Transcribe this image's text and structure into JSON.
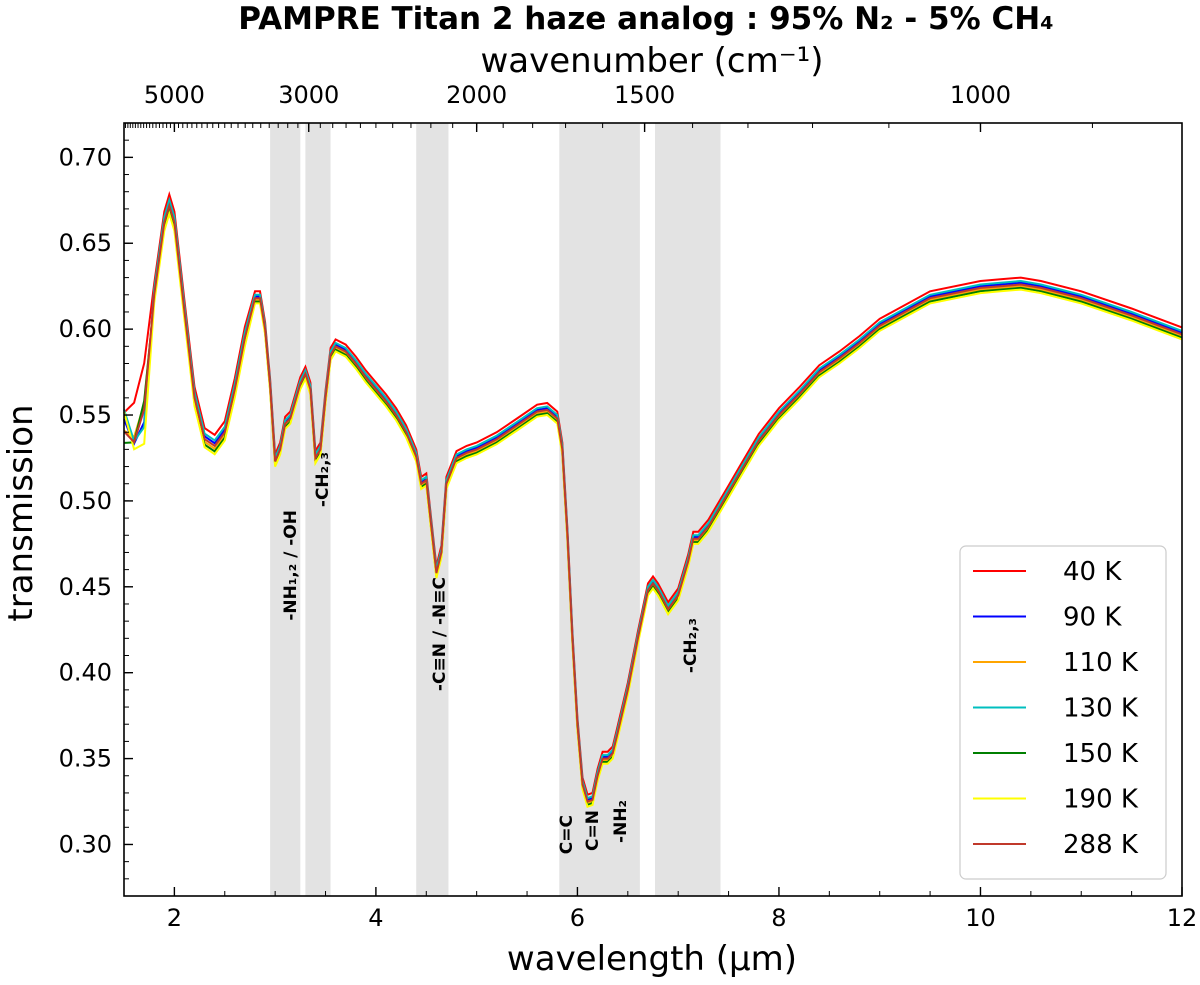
{
  "chart_data": {
    "type": "line",
    "title": "PAMPRE Titan 2 haze analog : 95% N₂ - 5% CH₄",
    "xlabel": "wavelength (μm)",
    "ylabel": "transmission",
    "x2label": "wavenumber (cm⁻¹)",
    "xlim": [
      1.5,
      12
    ],
    "ylim": [
      0.27,
      0.72
    ],
    "xticks": [
      2,
      4,
      6,
      8,
      10,
      12
    ],
    "yticks": [
      0.3,
      0.35,
      0.4,
      0.45,
      0.5,
      0.55,
      0.6,
      0.65,
      0.7
    ],
    "x2ticks": [
      5000,
      3000,
      2000,
      1500,
      1000
    ],
    "legend_position": "lower-right",
    "grid": false,
    "bands": [
      {
        "xmin": 2.95,
        "xmax": 3.25,
        "label": "-NH₁,₂ / -OH"
      },
      {
        "xmin": 3.3,
        "xmax": 3.55,
        "label": "-CH₂,₃"
      },
      {
        "xmin": 4.4,
        "xmax": 4.72,
        "label": "-C≡N / -N≡C"
      },
      {
        "xmin": 5.82,
        "xmax": 6.62,
        "labels": [
          "C=C",
          "C=N",
          "-NH₂"
        ]
      },
      {
        "xmin": 6.77,
        "xmax": 7.42,
        "label": "-CH₂,₃"
      }
    ],
    "base_x": [
      1.5,
      1.6,
      1.7,
      1.8,
      1.9,
      1.95,
      2.0,
      2.1,
      2.2,
      2.3,
      2.4,
      2.5,
      2.6,
      2.7,
      2.8,
      2.85,
      2.9,
      2.95,
      3.0,
      3.05,
      3.1,
      3.15,
      3.2,
      3.25,
      3.3,
      3.35,
      3.4,
      3.45,
      3.5,
      3.55,
      3.6,
      3.7,
      3.8,
      3.9,
      4.0,
      4.1,
      4.2,
      4.3,
      4.4,
      4.45,
      4.5,
      4.55,
      4.6,
      4.65,
      4.7,
      4.8,
      4.9,
      5.0,
      5.2,
      5.4,
      5.6,
      5.7,
      5.8,
      5.85,
      5.9,
      5.95,
      6.0,
      6.05,
      6.1,
      6.15,
      6.2,
      6.25,
      6.3,
      6.35,
      6.4,
      6.5,
      6.6,
      6.7,
      6.75,
      6.8,
      6.9,
      7.0,
      7.1,
      7.15,
      7.2,
      7.3,
      7.4,
      7.5,
      7.6,
      7.8,
      8.0,
      8.2,
      8.4,
      8.6,
      8.8,
      9.0,
      9.5,
      10.0,
      10.2,
      10.4,
      10.6,
      11.0,
      11.5,
      12.0
    ],
    "base_y": [
      0.545,
      0.535,
      0.55,
      0.62,
      0.662,
      0.672,
      0.662,
      0.61,
      0.56,
      0.536,
      0.532,
      0.54,
      0.565,
      0.595,
      0.618,
      0.618,
      0.6,
      0.567,
      0.523,
      0.53,
      0.545,
      0.548,
      0.558,
      0.568,
      0.574,
      0.565,
      0.525,
      0.53,
      0.56,
      0.585,
      0.59,
      0.587,
      0.58,
      0.572,
      0.565,
      0.558,
      0.55,
      0.54,
      0.526,
      0.51,
      0.512,
      0.485,
      0.458,
      0.47,
      0.51,
      0.525,
      0.528,
      0.53,
      0.536,
      0.544,
      0.552,
      0.553,
      0.548,
      0.53,
      0.48,
      0.42,
      0.37,
      0.335,
      0.325,
      0.326,
      0.34,
      0.35,
      0.35,
      0.353,
      0.365,
      0.39,
      0.42,
      0.448,
      0.452,
      0.448,
      0.437,
      0.445,
      0.465,
      0.478,
      0.478,
      0.485,
      0.495,
      0.505,
      0.515,
      0.535,
      0.55,
      0.562,
      0.575,
      0.583,
      0.592,
      0.602,
      0.618,
      0.624,
      0.625,
      0.626,
      0.624,
      0.618,
      0.608,
      0.597
    ],
    "series": [
      {
        "name": "40 K",
        "color": "#ff0000",
        "offset": 0.004,
        "noise": 0.04
      },
      {
        "name": "90 K",
        "color": "#0000ff",
        "offset": 0.001,
        "noise": 0.01
      },
      {
        "name": "110 K",
        "color": "#ffa500",
        "offset": -0.001,
        "noise": 0.015
      },
      {
        "name": "130 K",
        "color": "#00bfbf",
        "offset": 0.002,
        "noise": 0.02
      },
      {
        "name": "150 K",
        "color": "#007f00",
        "offset": -0.002,
        "noise": 0.025
      },
      {
        "name": "190 K",
        "color": "#ffff00",
        "offset": -0.003,
        "noise": 0.03
      },
      {
        "name": "288 K",
        "color": "#c0392b",
        "offset": 0.0,
        "noise": 0.01
      }
    ]
  }
}
